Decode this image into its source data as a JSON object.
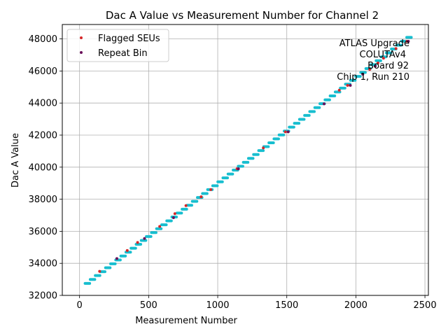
{
  "chart_data": {
    "type": "scatter",
    "title": "Dac A Value vs Measurement Number for Channel 2",
    "xlabel": "Measurement Number",
    "ylabel": "Dac A Value",
    "xlim": [
      -125,
      2525
    ],
    "ylim": [
      32000,
      48900
    ],
    "x_ticks": [
      0,
      500,
      1000,
      1500,
      2000,
      2500
    ],
    "y_ticks": [
      32000,
      34000,
      36000,
      38000,
      40000,
      42000,
      44000,
      46000,
      48000
    ],
    "x_tick_labels": [
      "0",
      "500",
      "1000",
      "1500",
      "2000",
      "2500"
    ],
    "y_tick_labels": [
      "32000",
      "34000",
      "36000",
      "38000",
      "40000",
      "42000",
      "44000",
      "46000",
      "48000"
    ],
    "grid": true,
    "legend_position": "top-left",
    "series": [
      {
        "name": "Flagged SEUs",
        "color": "#d62728",
        "points": [
          [
            145,
            33500
          ],
          [
            345,
            34800
          ],
          [
            420,
            35300
          ],
          [
            580,
            36300
          ],
          [
            690,
            37100
          ],
          [
            770,
            37600
          ],
          [
            880,
            38150
          ],
          [
            950,
            38600
          ],
          [
            1140,
            39900
          ],
          [
            1330,
            41200
          ],
          [
            1490,
            42200
          ],
          [
            1880,
            44800
          ],
          [
            1940,
            45100
          ],
          [
            2100,
            46100
          ],
          [
            2160,
            46500
          ],
          [
            2200,
            46800
          ],
          [
            2290,
            47400
          ],
          [
            2370,
            47850
          ]
        ]
      },
      {
        "name": "Repeat Bin",
        "color": "#6a0f5a",
        "points": [
          [
            270,
            34300
          ],
          [
            470,
            35550
          ],
          [
            680,
            36850
          ],
          [
            1150,
            39900
          ],
          [
            1510,
            42200
          ],
          [
            1770,
            43950
          ],
          [
            1960,
            45100
          ],
          [
            2050,
            45800
          ],
          [
            2140,
            46300
          ],
          [
            2380,
            47850
          ]
        ]
      }
    ],
    "background_series": {
      "color": "#17becf",
      "x_start": 40,
      "x_end": 2405,
      "y_start": 32750,
      "y_end": 48100,
      "steps": 64
    },
    "annotation_lines": [
      "ATLAS Upgrade",
      "COLUTAv4",
      "Board 92",
      "Chip 1, Run 210"
    ]
  }
}
